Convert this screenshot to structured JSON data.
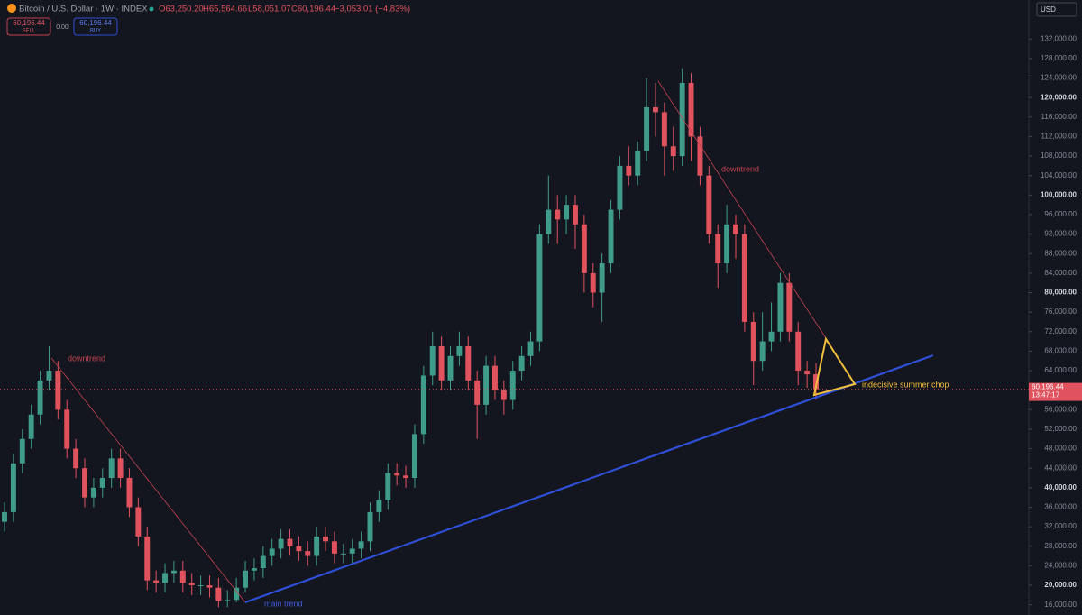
{
  "header": {
    "title": "Bitcoin / U.S. Dollar · 1W · INDEX",
    "open": "O63,250.20",
    "high": "H65,564.66",
    "low": "L58,051.07",
    "close": "C60,196.44",
    "change": "−3,053.01 (−4.83%)",
    "sell_price": "60,196.44",
    "sell": "SELL",
    "spread": "0.00",
    "buy_price": "60,196.44",
    "buy": "BUY",
    "currency": "USD"
  },
  "price_label": {
    "price": "60,196.44",
    "countdown": "13:47:17"
  },
  "annotations": {
    "downtrend_1": "downtrend",
    "downtrend_2": "downtrend",
    "main_trend": "main trend",
    "chop": "indecisive summer chop"
  },
  "chart_data": {
    "type": "candlestick",
    "up_color": "#3f9c8b",
    "down_color": "#e0525e",
    "grid": false,
    "ylim": [
      13900,
      140000
    ],
    "yticks": [
      {
        "value": 16000,
        "label": "16,000.00"
      },
      {
        "value": 20000,
        "label": "20,000.00"
      },
      {
        "value": 24000,
        "label": "24,000.00"
      },
      {
        "value": 28000,
        "label": "28,000.00"
      },
      {
        "value": 32000,
        "label": "32,000.00"
      },
      {
        "value": 36000,
        "label": "36,000.00"
      },
      {
        "value": 40000,
        "label": "40,000.00"
      },
      {
        "value": 44000,
        "label": "44,000.00"
      },
      {
        "value": 48000,
        "label": "48,000.00"
      },
      {
        "value": 52000,
        "label": "52,000.00"
      },
      {
        "value": 56000,
        "label": "56,000.00"
      },
      {
        "value": 60000,
        "label": "60,000.00"
      },
      {
        "value": 64000,
        "label": "64,000.00"
      },
      {
        "value": 68000,
        "label": "68,000.00"
      },
      {
        "value": 72000,
        "label": "72,000.00"
      },
      {
        "value": 76000,
        "label": "76,000.00"
      },
      {
        "value": 80000,
        "label": "80,000.00"
      },
      {
        "value": 84000,
        "label": "84,000.00"
      },
      {
        "value": 88000,
        "label": "88,000.00"
      },
      {
        "value": 92000,
        "label": "92,000.00"
      },
      {
        "value": 96000,
        "label": "96,000.00"
      },
      {
        "value": 100000,
        "label": "100,000.00"
      },
      {
        "value": 104000,
        "label": "104,000.00"
      },
      {
        "value": 108000,
        "label": "108,000.00"
      },
      {
        "value": 112000,
        "label": "112,000.00"
      },
      {
        "value": 116000,
        "label": "116,000.00"
      },
      {
        "value": 120000,
        "label": "120,000.00"
      },
      {
        "value": 124000,
        "label": "124,000.00"
      },
      {
        "value": 128000,
        "label": "128,000.00"
      },
      {
        "value": 132000,
        "label": "132,000.00"
      }
    ],
    "open": [
      33000,
      35000,
      45000,
      50000,
      55000,
      62000,
      64000,
      56000,
      48000,
      44000,
      38000,
      40000,
      42000,
      46000,
      42000,
      36000,
      30000,
      21000,
      20500,
      22500,
      23000,
      20500,
      20000,
      20000,
      19500,
      16800,
      17000,
      19500,
      23000,
      23500,
      26000,
      27500,
      29500,
      28000,
      27000,
      26000,
      30000,
      29000,
      26500,
      26500,
      27500,
      29000,
      35000,
      37500,
      43000,
      42500,
      42000,
      51000,
      63000,
      69000,
      62000,
      67000,
      69000,
      62000,
      57000,
      65000,
      60000,
      58000,
      64000,
      67000,
      70000,
      92000,
      97000,
      95000,
      98000,
      94000,
      84000,
      80000,
      86000,
      97000,
      106000,
      104000,
      109000,
      118000,
      117000,
      110000,
      108000,
      123000,
      112000,
      104000,
      92000,
      86000,
      94000,
      92000,
      74000,
      66000,
      70000,
      72000,
      82000,
      72000,
      64000,
      63250.2
    ],
    "high": [
      37000,
      47000,
      52000,
      57000,
      64000,
      69000,
      66000,
      58000,
      50000,
      46000,
      42000,
      44000,
      48000,
      48000,
      44000,
      38000,
      32000,
      23000,
      24500,
      25000,
      25000,
      22500,
      22000,
      22000,
      21500,
      19000,
      21500,
      25000,
      25500,
      28000,
      29500,
      31500,
      31500,
      30000,
      29000,
      32000,
      32000,
      31000,
      28500,
      29500,
      31000,
      37000,
      39500,
      45000,
      45000,
      44500,
      53000,
      65000,
      72000,
      71000,
      69000,
      72000,
      71000,
      64000,
      67000,
      67000,
      62000,
      66000,
      69000,
      72000,
      94000,
      104000,
      100000,
      100000,
      100000,
      96000,
      86000,
      88000,
      99000,
      108000,
      110000,
      111000,
      124000,
      123000,
      119000,
      114000,
      126000,
      125000,
      114000,
      106000,
      94000,
      98000,
      96000,
      94000,
      76000,
      76000,
      78000,
      84000,
      84000,
      74000,
      66000,
      65564.66
    ],
    "low": [
      31000,
      33000,
      43000,
      48000,
      53000,
      60000,
      54000,
      46000,
      42000,
      36000,
      36000,
      38000,
      40000,
      40000,
      34000,
      28000,
      19000,
      18500,
      18500,
      20500,
      18500,
      18000,
      18000,
      17500,
      15500,
      15500,
      16500,
      18500,
      21000,
      21500,
      24000,
      25500,
      26000,
      25000,
      24000,
      24000,
      27000,
      24500,
      24500,
      24500,
      25500,
      27000,
      33000,
      35500,
      40500,
      40000,
      40000,
      49000,
      61000,
      60000,
      60000,
      65000,
      60000,
      50000,
      55000,
      58000,
      55000,
      56000,
      62000,
      65000,
      68000,
      90000,
      90000,
      92000,
      89000,
      80000,
      77000,
      74000,
      84000,
      95000,
      102000,
      102000,
      107000,
      112000,
      104000,
      105000,
      106000,
      107000,
      102000,
      90000,
      81000,
      84000,
      87000,
      72000,
      61000,
      64000,
      68000,
      70000,
      70000,
      61000,
      60500,
      58051.07
    ],
    "close": [
      35000,
      45000,
      50000,
      55000,
      62000,
      64000,
      56000,
      48000,
      44000,
      38000,
      40000,
      42000,
      46000,
      42000,
      36000,
      30000,
      21000,
      20500,
      22500,
      23000,
      20500,
      20000,
      20000,
      19500,
      16800,
      17000,
      19500,
      23000,
      23500,
      26000,
      27500,
      29500,
      28000,
      27000,
      26000,
      30000,
      29000,
      26500,
      26500,
      27500,
      29000,
      35000,
      37500,
      43000,
      42500,
      42000,
      51000,
      63000,
      69000,
      62000,
      67000,
      69000,
      62000,
      57000,
      65000,
      60000,
      58000,
      64000,
      67000,
      70000,
      92000,
      97000,
      95000,
      98000,
      94000,
      84000,
      80000,
      86000,
      97000,
      106000,
      104000,
      109000,
      118000,
      117000,
      110000,
      108000,
      123000,
      112000,
      104000,
      92000,
      86000,
      94000,
      92000,
      74000,
      66000,
      70000,
      72000,
      82000,
      72000,
      64000,
      63249.45,
      60196.44
    ]
  }
}
